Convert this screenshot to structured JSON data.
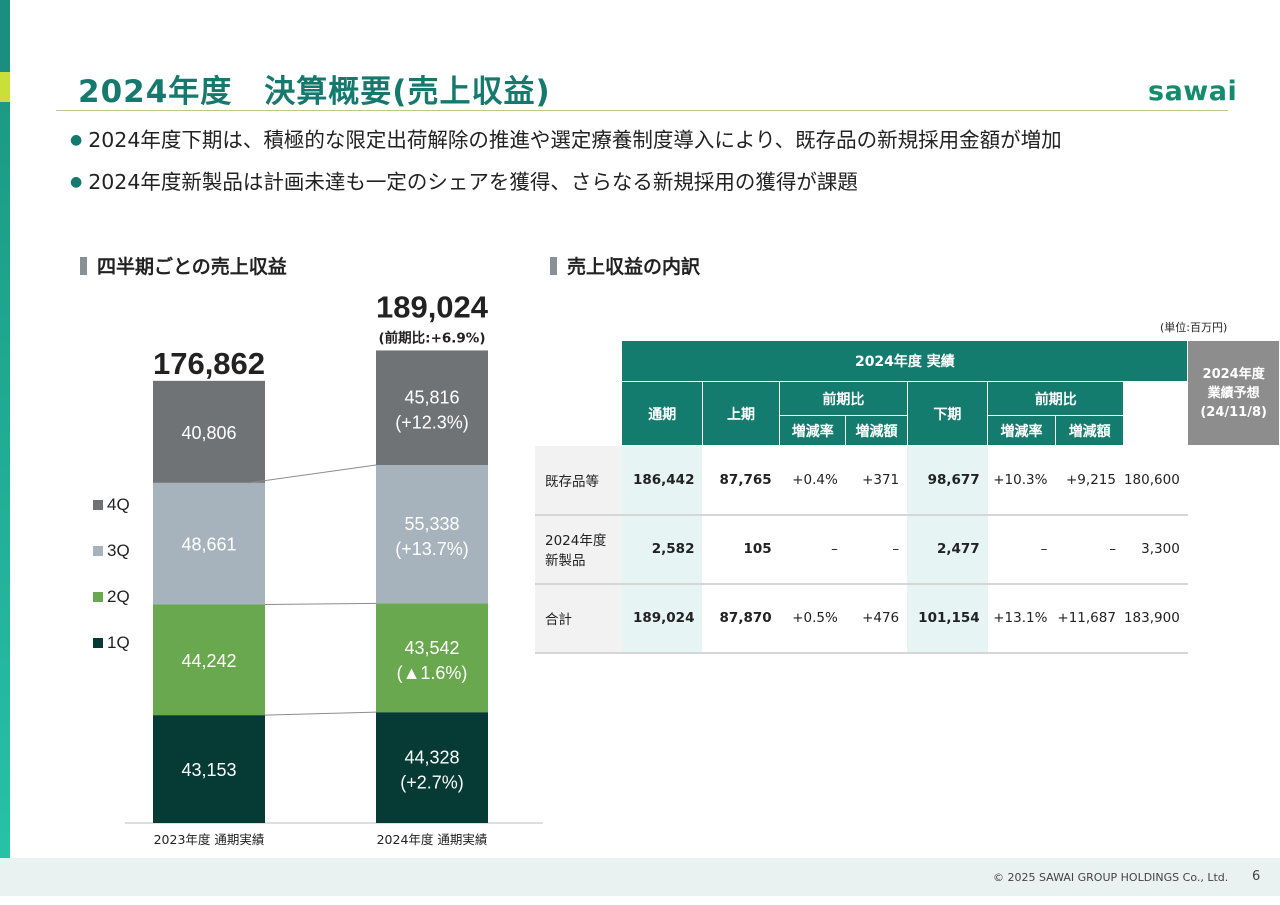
{
  "header": {
    "title": "2024年度　決算概要(売上収益)",
    "logo": "sawai"
  },
  "bullets": [
    "2024年度下期は、積極的な限定出荷解除の推進や選定療養制度導入により、既存品の新規採用金額が増加",
    "2024年度新製品は計画未達も一定のシェアを獲得、さらなる新規採用の獲得が課題"
  ],
  "left_section": {
    "heading": "四半期ごとの売上収益"
  },
  "right_section": {
    "heading": "売上収益の内訳",
    "unit": "(単位:百万円)"
  },
  "chart_data": {
    "type": "bar",
    "stacked": true,
    "categories": [
      "2023年度 通期実績",
      "2024年度 通期実績"
    ],
    "series": [
      {
        "name": "1Q",
        "values": [
          43153,
          44328
        ],
        "labels": [
          "",
          "(+2.7%)"
        ],
        "color": "#053b34"
      },
      {
        "name": "2Q",
        "values": [
          44242,
          43542
        ],
        "labels": [
          "",
          "(▲1.6%)"
        ],
        "color": "#6aa84f"
      },
      {
        "name": "3Q",
        "values": [
          48661,
          55338
        ],
        "labels": [
          "",
          "(+13.7%)"
        ],
        "color": "#a6b3bd"
      },
      {
        "name": "4Q",
        "values": [
          40806,
          45816
        ],
        "labels": [
          "",
          "(+12.3%)"
        ],
        "color": "#707376"
      }
    ],
    "value_labels": [
      "43,153",
      "44,242",
      "48,661",
      "40,806",
      "44,328",
      "43,542",
      "55,338",
      "45,816"
    ],
    "totals": [
      "176,862",
      "189,024"
    ],
    "total_notes": [
      "",
      "(前期比:+6.9%)"
    ],
    "legend": {
      "placement": "left",
      "order": [
        "4Q",
        "3Q",
        "2Q",
        "1Q"
      ]
    }
  },
  "table": {
    "group_header": "2024年度 実績",
    "forecast_header": [
      "2024年度",
      "業績予想",
      "(24/11/8)"
    ],
    "col_full": "通期",
    "col_h1": "上期",
    "col_h2": "下期",
    "yoy": "前期比",
    "rate": "増減率",
    "amount": "増減額",
    "rows": [
      {
        "label": [
          "既存品等"
        ],
        "full": "186,442",
        "h1": "87,765",
        "h1_rate": "+0.4%",
        "h1_amt": "+371",
        "h2": "98,677",
        "h2_rate": "+10.3%",
        "h2_amt": "+9,215",
        "forecast": "180,600"
      },
      {
        "label": [
          "2024年度",
          "新製品"
        ],
        "full": "2,582",
        "h1": "105",
        "h1_rate": "–",
        "h1_amt": "–",
        "h2": "2,477",
        "h2_rate": "–",
        "h2_amt": "–",
        "forecast": "3,300"
      },
      {
        "label": [
          "合計"
        ],
        "full": "189,024",
        "h1": "87,870",
        "h1_rate": "+0.5%",
        "h1_amt": "+476",
        "h2": "101,154",
        "h2_rate": "+13.1%",
        "h2_amt": "+11,687",
        "forecast": "183,900"
      }
    ]
  },
  "footer": {
    "copyright": "© 2025 SAWAI GROUP HOLDINGS Co., Ltd.",
    "page": "6"
  }
}
